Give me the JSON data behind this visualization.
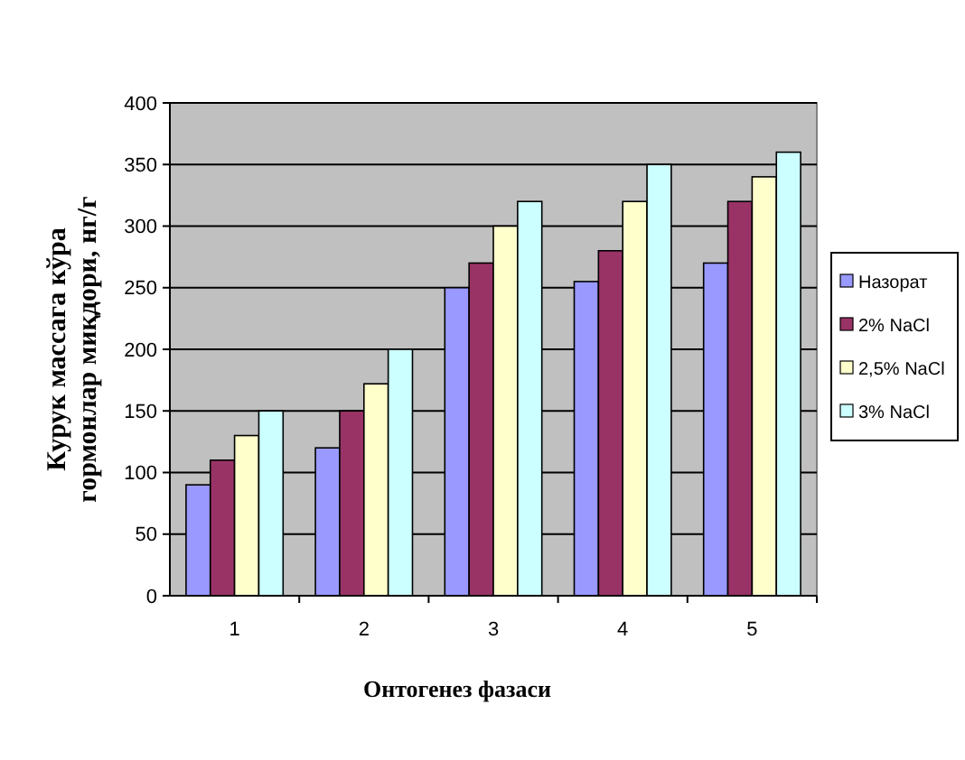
{
  "chart_data": {
    "type": "bar",
    "xlabel": "Онтогенез фазаси",
    "ylabel": "Курук массага кўра гормонлар миқдори, нг/г",
    "categories": [
      "1",
      "2",
      "3",
      "4",
      "5"
    ],
    "series": [
      {
        "name": "Назорат",
        "color": "#9999ff",
        "values": [
          90,
          120,
          250,
          255,
          270
        ]
      },
      {
        "name": "2% NaCl",
        "color": "#993366",
        "values": [
          110,
          150,
          270,
          280,
          320
        ]
      },
      {
        "name": "2,5% NaCl",
        "color": "#ffffcc",
        "values": [
          130,
          172,
          300,
          320,
          340
        ]
      },
      {
        "name": "3% NaCl",
        "color": "#ccffff",
        "values": [
          150,
          200,
          320,
          350,
          360
        ]
      }
    ],
    "ylim": [
      0,
      400
    ],
    "yticks": [
      0,
      50,
      100,
      150,
      200,
      250,
      300,
      350,
      400
    ],
    "grid": "y",
    "legend": "right"
  }
}
